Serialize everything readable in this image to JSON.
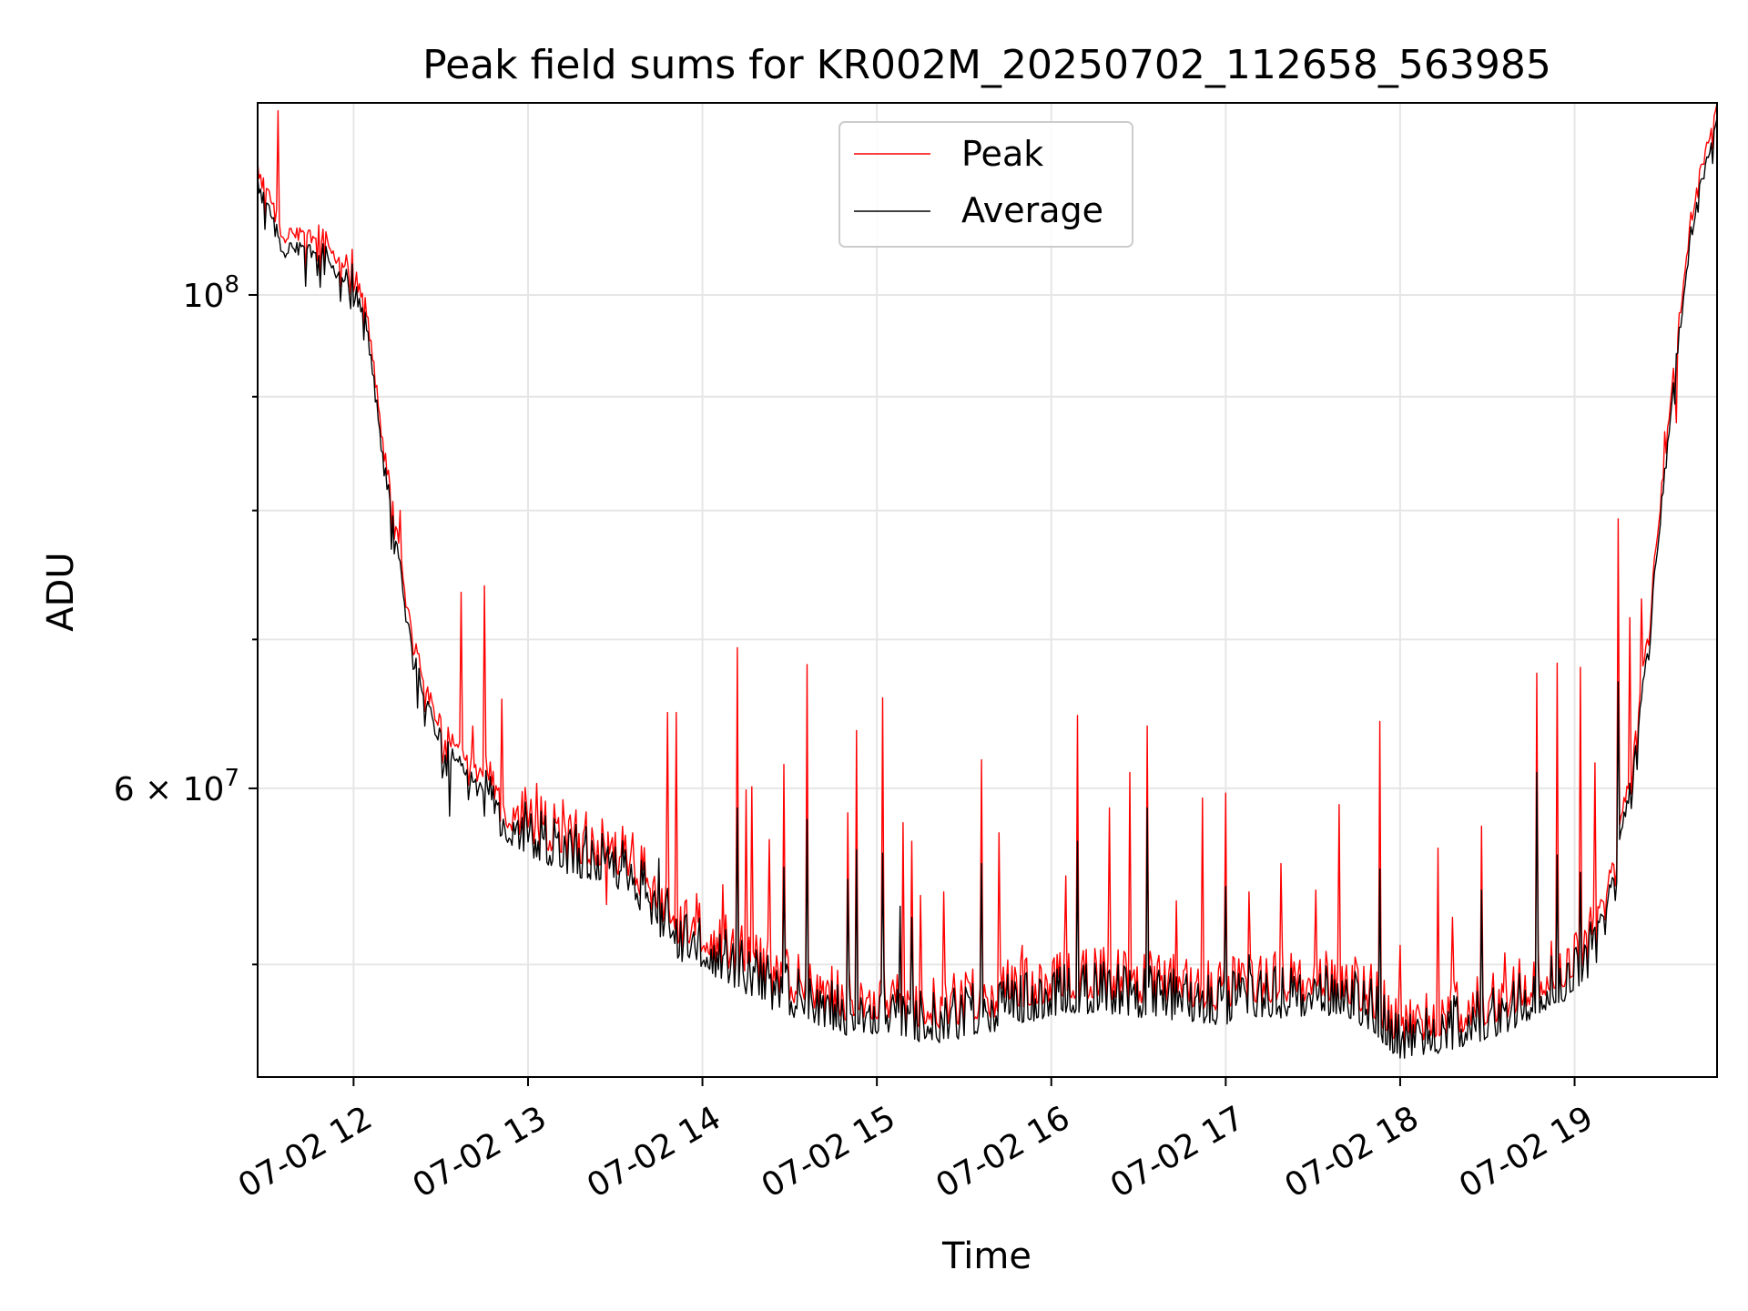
{
  "chart_data": {
    "type": "line",
    "title": "Peak field sums for KR002M_20250702_112658_563985",
    "xlabel": "Time",
    "ylabel": "ADU",
    "x_axis": {
      "kind": "datetime",
      "range": [
        "2025-07-02 11:27",
        "2025-07-02 19:49"
      ],
      "tick_labels": [
        "07-02 12",
        "07-02 13",
        "07-02 14",
        "07-02 15",
        "07-02 16",
        "07-02 17",
        "07-02 18",
        "07-02 19"
      ],
      "tick_hours": [
        12,
        13,
        14,
        15,
        16,
        17,
        18,
        19
      ]
    },
    "y_axis": {
      "scale": "log",
      "range": [
        44500000,
        122000000
      ],
      "major_ticks": [
        {
          "value": 100000000,
          "base": "10",
          "exp": "8",
          "mantissa": ""
        },
        {
          "value": 60000000,
          "base": "10",
          "exp": "7",
          "mantissa": "6"
        }
      ],
      "gridlines": [
        50000000,
        60000000,
        70000000,
        80000000,
        90000000,
        100000000
      ]
    },
    "grid": true,
    "legend": {
      "position": "top-center",
      "entries": [
        "Peak",
        "Average"
      ]
    },
    "series": [
      {
        "name": "Peak",
        "color": "#ff0000",
        "base_points": [
          [
            "11:27",
            114000000
          ],
          [
            "11:30",
            111000000
          ],
          [
            "11:33",
            109000000
          ],
          [
            "11:36",
            106000000
          ],
          [
            "11:40",
            106500000
          ],
          [
            "11:45",
            106000000
          ],
          [
            "11:50",
            106500000
          ],
          [
            "11:55",
            103000000
          ],
          [
            "11:58",
            103500000
          ],
          [
            "12:00",
            104500000
          ],
          [
            "12:05",
            97500000
          ],
          [
            "12:10",
            86000000
          ],
          [
            "12:15",
            78000000
          ],
          [
            "12:20",
            70500000
          ],
          [
            "12:25",
            66500000
          ],
          [
            "12:30",
            64000000
          ],
          [
            "12:40",
            61500000
          ],
          [
            "12:50",
            59500000
          ],
          [
            "13:00",
            58500000
          ],
          [
            "13:10",
            57500000
          ],
          [
            "13:20",
            57000000
          ],
          [
            "13:30",
            56500000
          ],
          [
            "13:40",
            55000000
          ],
          [
            "13:50",
            52500000
          ],
          [
            "14:00",
            52000000
          ],
          [
            "14:10",
            51000000
          ],
          [
            "14:20",
            50000000
          ],
          [
            "14:30",
            49500000
          ],
          [
            "14:40",
            49000000
          ],
          [
            "14:50",
            48500000
          ],
          [
            "15:00",
            48500000
          ],
          [
            "15:10",
            48300000
          ],
          [
            "15:20",
            48100000
          ],
          [
            "15:30",
            48300000
          ],
          [
            "15:40",
            48700000
          ],
          [
            "15:50",
            49100000
          ],
          [
            "16:00",
            49400000
          ],
          [
            "16:10",
            49600000
          ],
          [
            "16:20",
            49600000
          ],
          [
            "16:30",
            49400000
          ],
          [
            "16:40",
            49300000
          ],
          [
            "16:50",
            49200000
          ],
          [
            "17:00",
            49000000
          ],
          [
            "17:10",
            49200000
          ],
          [
            "17:20",
            49400000
          ],
          [
            "17:30",
            49500000
          ],
          [
            "17:40",
            49500000
          ],
          [
            "17:50",
            48700000
          ],
          [
            "18:00",
            47200000
          ],
          [
            "18:10",
            47500000
          ],
          [
            "18:20",
            47900000
          ],
          [
            "18:30",
            48300000
          ],
          [
            "18:40",
            48900000
          ],
          [
            "18:50",
            49700000
          ],
          [
            "19:00",
            50600000
          ],
          [
            "19:05",
            51500000
          ],
          [
            "19:10",
            53500000
          ],
          [
            "19:15",
            57000000
          ],
          [
            "19:20",
            62000000
          ],
          [
            "19:25",
            70000000
          ],
          [
            "19:30",
            82000000
          ],
          [
            "19:35",
            95000000
          ],
          [
            "19:40",
            108000000
          ],
          [
            "19:45",
            116000000
          ],
          [
            "19:49",
            121500000
          ]
        ],
        "spikes": [
          [
            "11:34",
            121000000
          ],
          [
            "11:48",
            107500000
          ],
          [
            "12:16",
            80000000
          ],
          [
            "12:22",
            69000000
          ],
          [
            "12:26",
            65500000
          ],
          [
            "12:33",
            63000000
          ],
          [
            "12:37",
            73500000
          ],
          [
            "12:41",
            64000000
          ],
          [
            "12:45",
            74000000
          ],
          [
            "12:51",
            65800000
          ],
          [
            "12:58",
            59800000
          ],
          [
            "13:03",
            60300000
          ],
          [
            "13:12",
            59300000
          ],
          [
            "13:22",
            57600000
          ],
          [
            "13:27",
            53200000
          ],
          [
            "13:36",
            57300000
          ],
          [
            "13:45",
            55300000
          ],
          [
            "13:48",
            64900000
          ],
          [
            "13:51",
            64900000
          ],
          [
            "13:58",
            53800000
          ],
          [
            "14:07",
            54300000
          ],
          [
            "14:12",
            69400000
          ],
          [
            "14:15",
            59900000
          ],
          [
            "14:17",
            60100000
          ],
          [
            "14:23",
            56900000
          ],
          [
            "14:28",
            61500000
          ],
          [
            "14:36",
            68200000
          ],
          [
            "14:50",
            58500000
          ],
          [
            "14:53",
            63700000
          ],
          [
            "15:02",
            65900000
          ],
          [
            "15:09",
            57900000
          ],
          [
            "15:12",
            56800000
          ],
          [
            "15:15",
            53700000
          ],
          [
            "15:23",
            53900000
          ],
          [
            "15:36",
            61800000
          ],
          [
            "15:42",
            57300000
          ],
          [
            "15:50",
            51000000
          ],
          [
            "16:05",
            54800000
          ],
          [
            "16:09",
            64700000
          ],
          [
            "16:20",
            58800000
          ],
          [
            "16:27",
            61000000
          ],
          [
            "16:33",
            64000000
          ],
          [
            "16:43",
            53400000
          ],
          [
            "16:52",
            59400000
          ],
          [
            "17:00",
            59700000
          ],
          [
            "17:08",
            53900000
          ],
          [
            "17:19",
            55500000
          ],
          [
            "17:31",
            54000000
          ],
          [
            "17:39",
            59000000
          ],
          [
            "17:53",
            64300000
          ],
          [
            "18:00",
            51000000
          ],
          [
            "18:13",
            56400000
          ],
          [
            "18:18",
            52500000
          ],
          [
            "18:28",
            57700000
          ],
          [
            "18:36",
            50600000
          ],
          [
            "18:47",
            67600000
          ],
          [
            "18:54",
            68300000
          ],
          [
            "19:02",
            68000000
          ],
          [
            "19:07",
            61600000
          ],
          [
            "19:15",
            79300000
          ],
          [
            "19:19",
            71600000
          ],
          [
            "19:23",
            73000000
          ],
          [
            "19:31",
            86800000
          ],
          [
            "19:35",
            87600000
          ]
        ]
      },
      {
        "name": "Average",
        "color": "#000000",
        "base_points": [
          [
            "11:27",
            114000000
          ],
          [
            "11:30",
            111000000
          ],
          [
            "11:33",
            109000000
          ],
          [
            "11:36",
            106000000
          ],
          [
            "11:40",
            106500000
          ],
          [
            "11:45",
            106000000
          ],
          [
            "11:50",
            106500000
          ],
          [
            "11:55",
            103000000
          ],
          [
            "11:58",
            103500000
          ],
          [
            "12:00",
            104500000
          ],
          [
            "12:05",
            97500000
          ],
          [
            "12:10",
            86000000
          ],
          [
            "12:15",
            78000000
          ],
          [
            "12:20",
            70500000
          ],
          [
            "12:25",
            66500000
          ],
          [
            "12:30",
            64000000
          ],
          [
            "12:40",
            61500000
          ],
          [
            "12:50",
            59500000
          ],
          [
            "13:00",
            58500000
          ],
          [
            "13:10",
            57500000
          ],
          [
            "13:20",
            57000000
          ],
          [
            "13:30",
            56500000
          ],
          [
            "13:40",
            55000000
          ],
          [
            "13:50",
            52500000
          ],
          [
            "14:00",
            52000000
          ],
          [
            "14:10",
            51000000
          ],
          [
            "14:20",
            50000000
          ],
          [
            "14:30",
            49500000
          ],
          [
            "14:40",
            49000000
          ],
          [
            "14:50",
            48500000
          ],
          [
            "15:00",
            48500000
          ],
          [
            "15:10",
            48300000
          ],
          [
            "15:20",
            48100000
          ],
          [
            "15:30",
            48300000
          ],
          [
            "15:40",
            48700000
          ],
          [
            "15:50",
            49100000
          ],
          [
            "16:00",
            49400000
          ],
          [
            "16:10",
            49600000
          ],
          [
            "16:20",
            49600000
          ],
          [
            "16:30",
            49400000
          ],
          [
            "16:40",
            49300000
          ],
          [
            "16:50",
            49200000
          ],
          [
            "17:00",
            49000000
          ],
          [
            "17:10",
            49200000
          ],
          [
            "17:20",
            49400000
          ],
          [
            "17:30",
            49500000
          ],
          [
            "17:40",
            49500000
          ],
          [
            "17:50",
            48700000
          ],
          [
            "18:00",
            47200000
          ],
          [
            "18:10",
            47500000
          ],
          [
            "18:20",
            47900000
          ],
          [
            "18:30",
            48300000
          ],
          [
            "18:40",
            48900000
          ],
          [
            "18:50",
            49700000
          ],
          [
            "19:00",
            50600000
          ],
          [
            "19:05",
            51500000
          ],
          [
            "19:10",
            53500000
          ],
          [
            "19:15",
            57000000
          ],
          [
            "19:20",
            62000000
          ],
          [
            "19:25",
            70000000
          ],
          [
            "19:30",
            82000000
          ],
          [
            "19:35",
            95000000
          ],
          [
            "19:40",
            108000000
          ],
          [
            "19:45",
            116000000
          ],
          [
            "19:49",
            121500000
          ]
        ],
        "spikes": [
          [
            "12:22",
            65200000
          ],
          [
            "12:33",
            58300000
          ],
          [
            "12:41",
            60400000
          ],
          [
            "12:45",
            58300000
          ],
          [
            "13:03",
            55900000
          ],
          [
            "13:36",
            54300000
          ],
          [
            "13:45",
            55800000
          ],
          [
            "13:48",
            54100000
          ],
          [
            "13:51",
            52400000
          ],
          [
            "14:12",
            58800000
          ],
          [
            "14:28",
            55300000
          ],
          [
            "14:36",
            58100000
          ],
          [
            "14:50",
            54600000
          ],
          [
            "14:53",
            56300000
          ],
          [
            "15:02",
            56100000
          ],
          [
            "15:08",
            53100000
          ],
          [
            "15:12",
            52500000
          ],
          [
            "15:36",
            55500000
          ],
          [
            "16:09",
            56800000
          ],
          [
            "16:33",
            58800000
          ],
          [
            "17:00",
            54200000
          ],
          [
            "17:08",
            50500000
          ],
          [
            "17:53",
            55200000
          ],
          [
            "18:28",
            54000000
          ],
          [
            "18:47",
            61000000
          ],
          [
            "18:54",
            56000000
          ],
          [
            "19:02",
            55000000
          ],
          [
            "19:15",
            67000000
          ]
        ]
      }
    ]
  }
}
